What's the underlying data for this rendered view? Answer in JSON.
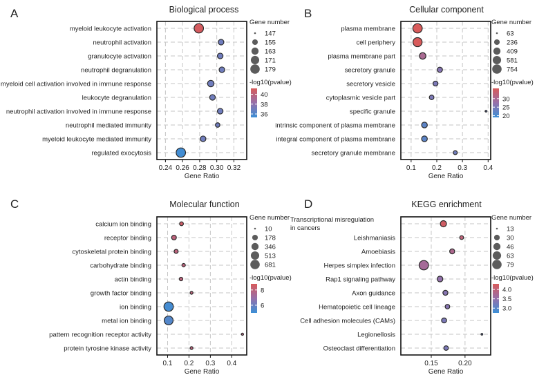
{
  "chart_data": [
    {
      "type": "scatter",
      "panel_label": "A",
      "title": "Biological process",
      "xlabel": "Gene Ratio",
      "ylabel": "",
      "xlim": [
        0.23,
        0.335
      ],
      "xticks": [
        0.24,
        0.26,
        0.28,
        0.3,
        0.32
      ],
      "xtick_labels": [
        "0.24",
        "0.26",
        "0.28",
        "0.30",
        "0.32"
      ],
      "categories": [
        "myeloid leukocyte activation",
        "neutrophil activation",
        "granulocyte activation",
        "neutrophil degranulation",
        "myeloid cell activation involved in immune response",
        "leukocyte degranulation",
        "neutrophil activation involved in immune response",
        "neutrophil mediated immunity",
        "myeloid leukocyte mediated immunity",
        "regulated exocytosis"
      ],
      "gene_ratio": [
        0.279,
        0.305,
        0.304,
        0.306,
        0.293,
        0.295,
        0.304,
        0.301,
        0.284,
        0.258
      ],
      "gene_number": [
        179,
        155,
        155,
        155,
        159,
        155,
        155,
        151,
        155,
        179
      ],
      "neg_log10_pvalue": [
        41,
        37,
        37,
        37,
        37,
        37,
        37,
        37,
        37,
        35.5
      ],
      "size_legend": {
        "title": "Gene number",
        "values": [
          147,
          155,
          163,
          171,
          179
        ]
      },
      "color_legend": {
        "title": "-log10(pvalue)",
        "ticks": [
          40,
          38,
          36
        ],
        "range": [
          35.3,
          41.2
        ],
        "low_color": "#3c8fd6",
        "high_color": "#d85a5a"
      }
    },
    {
      "type": "scatter",
      "panel_label": "B",
      "title": "Cellular component",
      "xlabel": "Gene Ratio",
      "ylabel": "",
      "xlim": [
        0.06,
        0.41
      ],
      "xticks": [
        0.1,
        0.2,
        0.3,
        0.4
      ],
      "xtick_labels": [
        "0.1",
        "0.2",
        "0.3",
        "0.4"
      ],
      "categories": [
        "plasma membrane",
        "cell periphery",
        "plasma membrane part",
        "secretory granule",
        "secretory vesicle",
        "cytoplasmic vesicle part",
        "specific granule",
        "intrinsic component of plasma membrane",
        "integral component of plasma membrane",
        "secretory granule membrane"
      ],
      "gene_ratio": [
        0.125,
        0.125,
        0.145,
        0.212,
        0.195,
        0.18,
        0.392,
        0.152,
        0.152,
        0.272
      ],
      "gene_number": [
        754,
        700,
        330,
        200,
        180,
        160,
        63,
        250,
        250,
        120
      ],
      "neg_log10_pvalue": [
        36,
        36,
        30,
        26,
        25,
        25,
        24,
        22,
        22,
        24
      ],
      "size_legend": {
        "title": "Gene number",
        "values": [
          63,
          236,
          409,
          581,
          754
        ]
      },
      "color_legend": {
        "title": "-log10(pvalue)",
        "ticks": [
          30,
          25,
          20
        ],
        "range": [
          19,
          36
        ],
        "low_color": "#3c8fd6",
        "high_color": "#d85a5a"
      }
    },
    {
      "type": "scatter",
      "panel_label": "C",
      "title": "Molecular function",
      "xlabel": "Gene Ratio",
      "ylabel": "",
      "xlim": [
        0.05,
        0.47
      ],
      "xticks": [
        0.1,
        0.2,
        0.3,
        0.4
      ],
      "xtick_labels": [
        "0.1",
        "0.2",
        "0.3",
        "0.4"
      ],
      "categories": [
        "calcium ion binding",
        "receptor binding",
        "cytoskeletal protein binding",
        "carbohydrate binding",
        "actin binding",
        "growth factor binding",
        "ion binding",
        "metal ion binding",
        "pattern recognition receptor activity",
        "protein tyrosine kinase activity"
      ],
      "gene_ratio": [
        0.165,
        0.13,
        0.14,
        0.175,
        0.163,
        0.212,
        0.105,
        0.105,
        0.45,
        0.212
      ],
      "gene_number": [
        60,
        110,
        70,
        40,
        45,
        25,
        681,
        600,
        12,
        25
      ],
      "neg_log10_pvalue": [
        8.5,
        8,
        8,
        8,
        8,
        8,
        5.2,
        5.5,
        8,
        8
      ],
      "size_legend": {
        "title": "Gene number",
        "values": [
          10,
          178,
          346,
          513,
          681
        ]
      },
      "color_legend": {
        "title": "-log10(pvalue)",
        "ticks": [
          8,
          6
        ],
        "range": [
          5,
          8.8
        ],
        "low_color": "#3c8fd6",
        "high_color": "#d85a5a"
      }
    },
    {
      "type": "scatter",
      "panel_label": "D",
      "title": "KEGG enrichment",
      "xlabel": "Gene Ratio",
      "ylabel": "",
      "xlim": [
        0.105,
        0.238
      ],
      "xticks": [
        0.15,
        0.2
      ],
      "xtick_labels": [
        "0.15",
        "0.20"
      ],
      "categories": [
        "Transcriptional misregulation in cancers",
        "Leishmaniasis",
        "Amoebiasis",
        "Herpes simplex infection",
        "Rap1 signaling pathway",
        "Axon guidance",
        "Hematopoietic cell lineage",
        "Cell adhesion molecules (CAMs)",
        "Legionellosis",
        "Osteoclast differentiation"
      ],
      "gene_ratio": [
        0.168,
        0.195,
        0.181,
        0.139,
        0.163,
        0.171,
        0.174,
        0.169,
        0.225,
        0.172
      ],
      "gene_number": [
        35,
        18,
        25,
        79,
        30,
        25,
        22,
        25,
        13,
        22
      ],
      "neg_log10_pvalue": [
        4.2,
        4.0,
        3.8,
        3.7,
        3.5,
        3.4,
        3.4,
        3.3,
        3.2,
        3.3
      ],
      "size_legend": {
        "title": "Gene number",
        "values": [
          13,
          30,
          46,
          63,
          79
        ]
      },
      "color_legend": {
        "title": "-log10(pvalue)",
        "ticks": [
          4.0,
          3.5,
          3.0
        ],
        "range": [
          2.75,
          4.3
        ],
        "low_color": "#3c8fd6",
        "high_color": "#d85a5a"
      }
    }
  ]
}
